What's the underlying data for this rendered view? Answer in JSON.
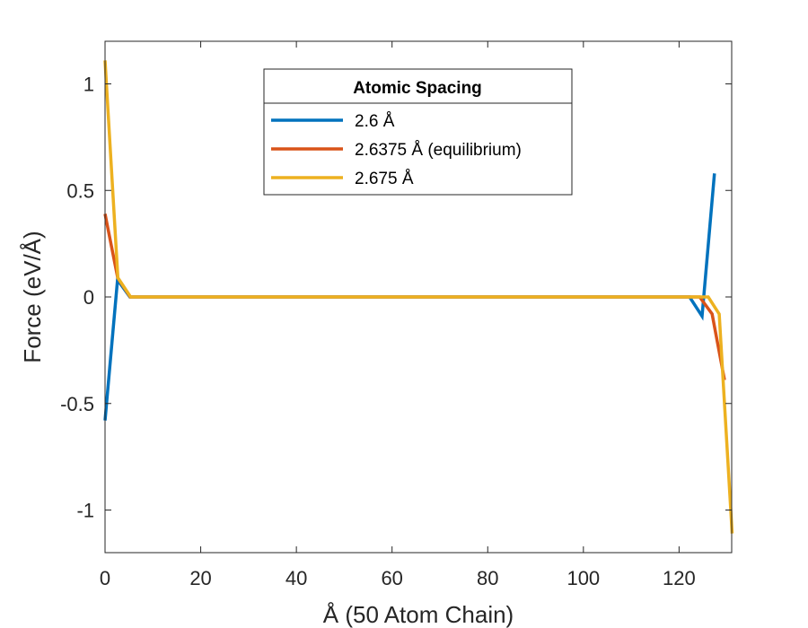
{
  "chart_data": {
    "type": "line",
    "xlabel": "Å (50 Atom Chain)",
    "ylabel": "Force (eV/Å)",
    "xlim": [
      0,
      131
    ],
    "ylim": [
      -1.2,
      1.2
    ],
    "xticks": [
      0,
      20,
      40,
      60,
      80,
      100,
      120
    ],
    "xtick_labels": [
      "0",
      "20",
      "40",
      "60",
      "80",
      "100",
      "120"
    ],
    "yticks": [
      1,
      0.5,
      0,
      -0.5,
      -1
    ],
    "ytick_labels": [
      "1",
      "0.5",
      "0",
      "-0.5",
      "-1"
    ],
    "grid": false,
    "legend": {
      "title": "Atomic Spacing",
      "placement": "top-center"
    },
    "series": [
      {
        "name": "2.6 Å",
        "color": "#0072BD",
        "x": [
          0,
          2.6,
          5.2,
          7.8,
          10.4,
          13,
          120,
          122.2,
          124.8,
          127.4
        ],
        "y": [
          -0.58,
          0.08,
          0,
          0,
          0,
          0,
          0,
          0,
          -0.09,
          0.58
        ]
      },
      {
        "name": "2.6375 Å (equilibrium)",
        "color": "#D95319",
        "x": [
          0,
          2.64,
          5.28,
          7.91,
          10.55,
          13.19,
          120,
          124.3,
          126.9,
          129.5
        ],
        "y": [
          0.39,
          0.09,
          0,
          0,
          0,
          0,
          0,
          0,
          -0.08,
          -0.39
        ]
      },
      {
        "name": "2.675 Å",
        "color": "#EDB120",
        "x": [
          0,
          2.68,
          5.35,
          8.03,
          10.7,
          13.38,
          120,
          126.1,
          128.4,
          131.1
        ],
        "y": [
          1.11,
          0.09,
          0,
          0,
          0,
          0,
          0,
          0,
          -0.08,
          -1.11
        ]
      }
    ]
  }
}
